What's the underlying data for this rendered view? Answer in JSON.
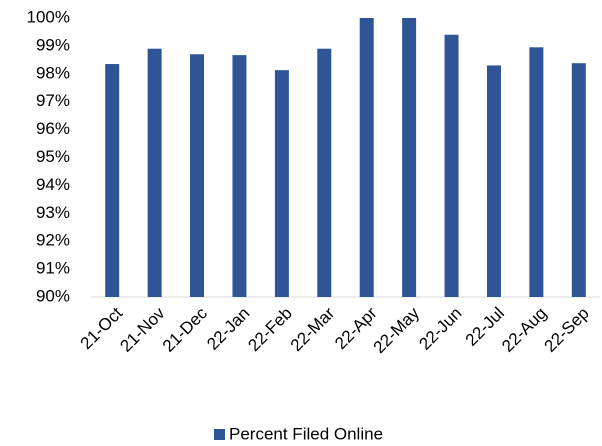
{
  "chart_data": {
    "type": "bar",
    "categories": [
      "21-Oct",
      "21-Nov",
      "21-Dec",
      "22-Jan",
      "22-Feb",
      "22-Mar",
      "22-Apr",
      "22-May",
      "22-Jun",
      "22-Jul",
      "22-Aug",
      "22-Sep"
    ],
    "series": [
      {
        "name": "Percent Filed Online",
        "color": "#2f5597",
        "values": [
          98.35,
          98.9,
          98.7,
          98.67,
          98.13,
          98.9,
          100,
          100,
          99.4,
          98.3,
          98.95,
          98.38
        ]
      }
    ],
    "ylim": [
      90,
      100
    ],
    "yticks": [
      {
        "value": 90,
        "label": "90%"
      },
      {
        "value": 91,
        "label": "91%"
      },
      {
        "value": 92,
        "label": "92%"
      },
      {
        "value": 93,
        "label": "93%"
      },
      {
        "value": 94,
        "label": "94%"
      },
      {
        "value": 95,
        "label": "95%"
      },
      {
        "value": 96,
        "label": "96%"
      },
      {
        "value": 97,
        "label": "97%"
      },
      {
        "value": 98,
        "label": "98%"
      },
      {
        "value": 99,
        "label": "99%"
      },
      {
        "value": 100,
        "label": "100%"
      }
    ],
    "grid": false,
    "legend": "bottom"
  }
}
